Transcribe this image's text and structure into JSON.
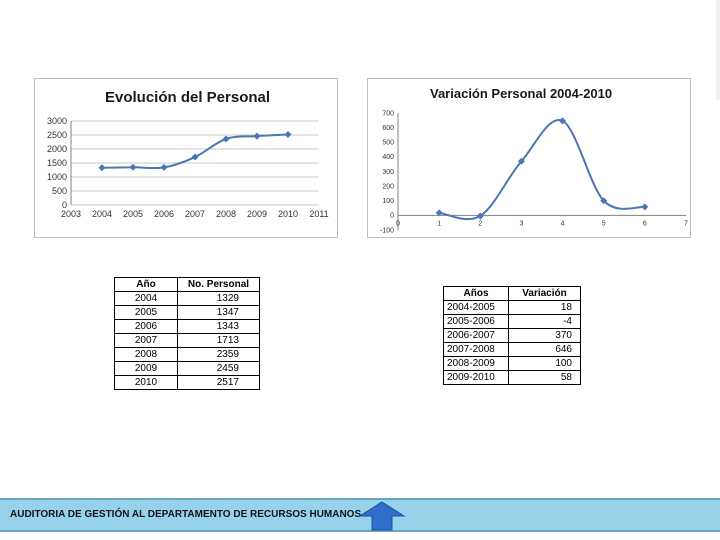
{
  "chart_data": [
    {
      "type": "line",
      "title": "Evolución del Personal",
      "x": [
        2004,
        2005,
        2006,
        2007,
        2008,
        2009,
        2010
      ],
      "series": [
        {
          "values": [
            1329,
            1347,
            1343,
            1713,
            2359,
            2459,
            2517
          ]
        }
      ],
      "xlim": [
        2003,
        2011
      ],
      "ylim": [
        0,
        3000
      ],
      "xticks": [
        2003,
        2004,
        2005,
        2006,
        2007,
        2008,
        2009,
        2010,
        2011
      ],
      "yticks": [
        0,
        500,
        1000,
        1500,
        2000,
        2500,
        3000
      ],
      "grid": true,
      "color": "#4a76b4"
    },
    {
      "type": "line",
      "title": "Variación Personal  2004-2010",
      "x": [
        1,
        2,
        3,
        4,
        5,
        6
      ],
      "series": [
        {
          "values": [
            18,
            -4,
            370,
            646,
            100,
            58
          ]
        }
      ],
      "xlim": [
        0,
        7
      ],
      "ylim": [
        -100,
        700
      ],
      "xticks": [
        0,
        1,
        2,
        3,
        4,
        5,
        6,
        7
      ],
      "yticks": [
        -100,
        0,
        100,
        200,
        300,
        400,
        500,
        600,
        700
      ],
      "grid": false,
      "color": "#4a76b4"
    }
  ],
  "table1": {
    "headers": [
      "Año",
      "No. Personal"
    ],
    "rows": [
      [
        "2004",
        "1329"
      ],
      [
        "2005",
        "1347"
      ],
      [
        "2006",
        "1343"
      ],
      [
        "2007",
        "1713"
      ],
      [
        "2008",
        "2359"
      ],
      [
        "2009",
        "2459"
      ],
      [
        "2010",
        "2517"
      ]
    ]
  },
  "table2": {
    "headers": [
      "Años",
      "Variación"
    ],
    "rows": [
      [
        "2004-2005",
        "18"
      ],
      [
        "2005-2006",
        "-4"
      ],
      [
        "2006-2007",
        "370"
      ],
      [
        "2007-2008",
        "646"
      ],
      [
        "2008-2009",
        "100"
      ],
      [
        "2009-2010",
        "58"
      ]
    ]
  },
  "footer": {
    "text": "AUDITORIA DE GESTIÓN AL DEPARTAMENTO DE RECURSOS HUMANOS"
  },
  "nav": {
    "arrow_icon": "up-arrow-icon",
    "arrow_color": "#2f6fc9"
  }
}
